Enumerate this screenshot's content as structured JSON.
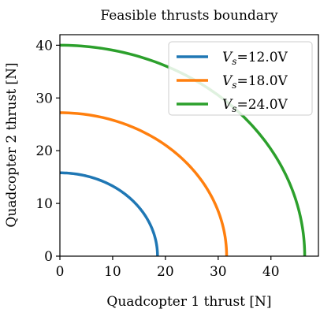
{
  "chart_data": {
    "type": "line",
    "title": "Feasible thrusts boundary",
    "xlabel": "Quadcopter 1 thrust [N]",
    "ylabel": "Quadcopter 2 thrust [N]",
    "xlim": [
      0,
      49
    ],
    "ylim": [
      0,
      42
    ],
    "xticks": [
      0,
      10,
      20,
      30,
      40
    ],
    "yticks": [
      0,
      10,
      20,
      30,
      40
    ],
    "grid": false,
    "legend_position": "top-right",
    "series": [
      {
        "name_symbol": "V",
        "name_subscript": "s",
        "name_value": "=12.0V",
        "color": "#1f77b4",
        "x_max": 18.5,
        "y_max": 15.8
      },
      {
        "name_symbol": "V",
        "name_subscript": "s",
        "name_value": "=18.0V",
        "color": "#ff7f0e",
        "x_max": 31.6,
        "y_max": 27.2
      },
      {
        "name_symbol": "V",
        "name_subscript": "s",
        "name_value": "=24.0V",
        "color": "#2ca02c",
        "x_max": 46.4,
        "y_max": 40.0
      }
    ]
  }
}
